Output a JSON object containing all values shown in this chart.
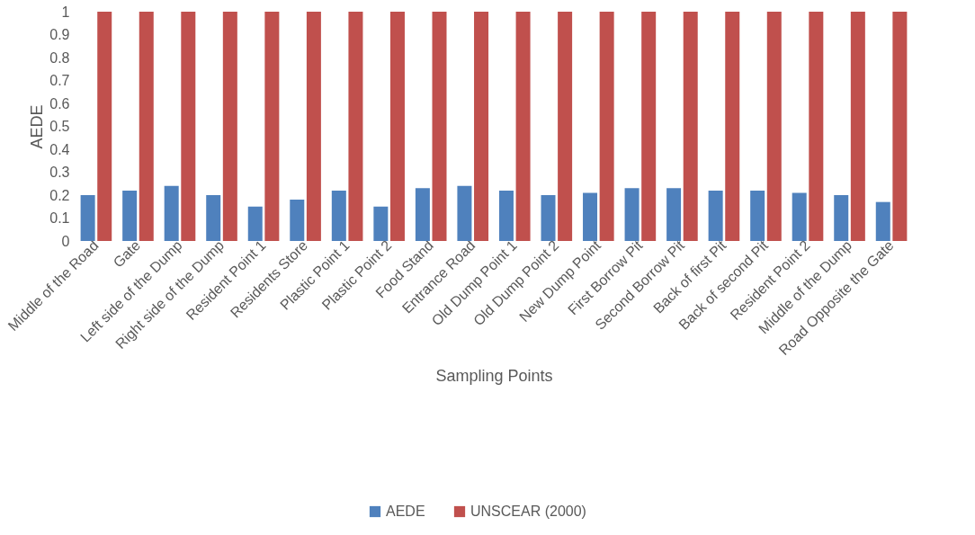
{
  "chart_data": {
    "type": "bar",
    "xlabel": "Sampling Points",
    "ylabel": "AEDE",
    "categories": [
      "Middle of the Road",
      "Gate",
      "Left side of the Dump",
      "Right side of the Dump",
      "Resident Point 1",
      "Residents Store",
      "Plastic Point 1",
      "Plastic Point 2",
      "Food Stand",
      "Entrance Road",
      "Old Dump Point 1",
      "Old Dump Point 2",
      "New  Dump Point",
      "First Borrow Pit",
      "Second Borrow Pit",
      "Back of first Pit",
      "Back of second Pit",
      "Resident Point 2",
      "Middle of the Dump",
      "Road Opposite the Gate"
    ],
    "series": [
      {
        "name": "AEDE",
        "color": "#4f81bd",
        "values": [
          0.2,
          0.22,
          0.24,
          0.2,
          0.15,
          0.18,
          0.22,
          0.15,
          0.23,
          0.24,
          0.22,
          0.2,
          0.21,
          0.23,
          0.23,
          0.22,
          0.22,
          0.21,
          0.2,
          0.17
        ]
      },
      {
        "name": "UNSCEAR (2000)",
        "color": "#c0504d",
        "values": [
          1,
          1,
          1,
          1,
          1,
          1,
          1,
          1,
          1,
          1,
          1,
          1,
          1,
          1,
          1,
          1,
          1,
          1,
          1,
          1
        ]
      }
    ],
    "ylim": [
      0,
      1
    ],
    "yticks": [
      0,
      0.1,
      0.2,
      0.3,
      0.4,
      0.5,
      0.6,
      0.7,
      0.8,
      0.9,
      1
    ],
    "grid": false,
    "legend": "bottom"
  }
}
